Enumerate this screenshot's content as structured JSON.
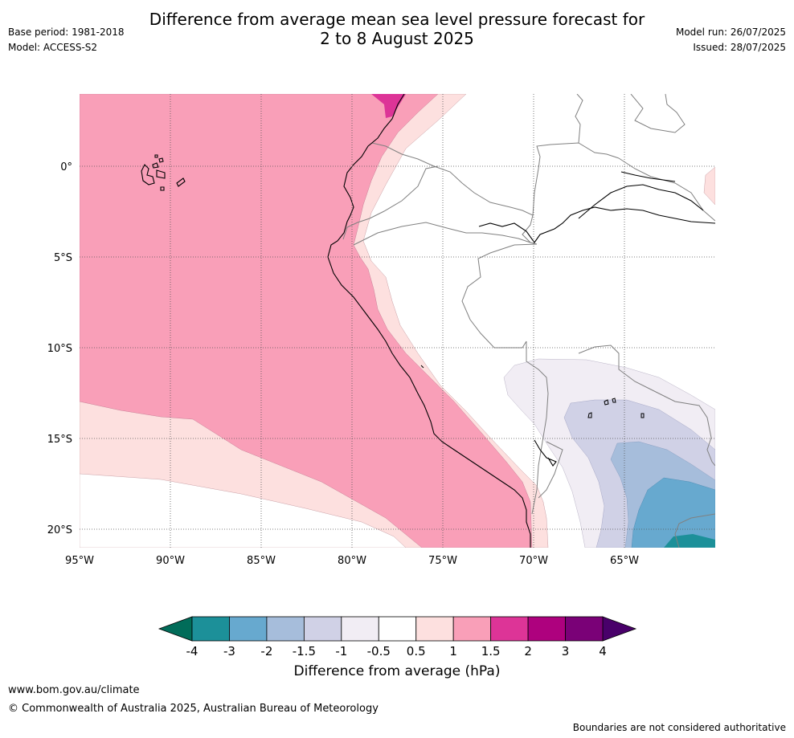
{
  "title_line1": "Difference from average mean sea level pressure forecast for",
  "title_line2": "2 to 8 August 2025",
  "base_period": "Base period: 1981-2018",
  "model": "Model: ACCESS-S2",
  "model_run": "Model run: 26/07/2025",
  "issued": "Issued: 28/07/2025",
  "map": {
    "lon_labels": [
      "95°W",
      "90°W",
      "85°W",
      "80°W",
      "75°W",
      "70°W",
      "65°W"
    ],
    "lat_labels": [
      "0°",
      "5°S",
      "10°S",
      "15°S",
      "20°S"
    ],
    "colors": {
      "ocean_anomaly_1_1_5": "#f99fb8",
      "anomaly_0_5_1": "#fde0df",
      "anomaly_neg0_5_neg1": "#f1edf4",
      "anomaly_neg1_neg1_5": "#d0d1e6",
      "anomaly_neg1_5_neg2": "#a6bddb",
      "anomaly_neg2_neg3": "#67a9cf",
      "anomaly_neg3_neg4": "#1c9099",
      "anomaly_1_5_2": "#dd3497"
    }
  },
  "colorbar": {
    "labels": [
      "-4",
      "-3",
      "-2",
      "-1.5",
      "-1",
      "-0.5",
      "0.5",
      "1",
      "1.5",
      "2",
      "3",
      "4"
    ],
    "colors": [
      "#1c9099",
      "#67a9cf",
      "#a6bddb",
      "#d0d1e6",
      "#f1edf4",
      "#ffffff",
      "#fde0df",
      "#f99fb8",
      "#dd3497",
      "#ae017e",
      "#7a0177"
    ],
    "under_color": "#016c59",
    "over_color": "#49006a",
    "title": "Difference from average (hPa)"
  },
  "footer": {
    "url": "www.bom.gov.au/climate",
    "copyright": "© Commonwealth of Australia 2025, Australian Bureau of Meteorology",
    "disclaimer": "Boundaries are not considered authoritative"
  }
}
